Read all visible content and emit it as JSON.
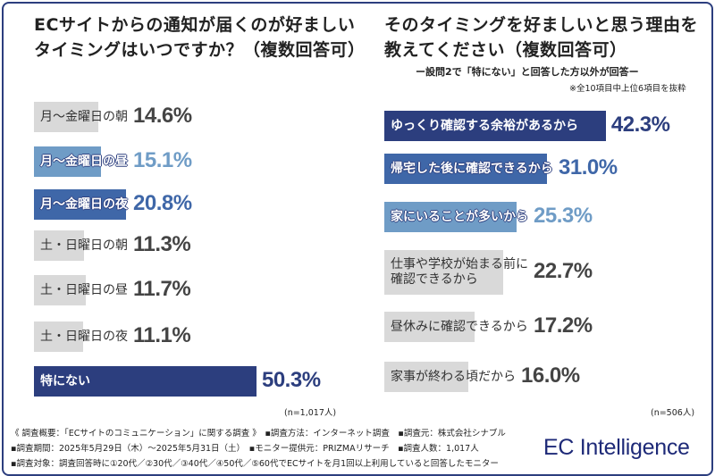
{
  "colors": {
    "navy": "#2c3e7e",
    "mid": "#3f67a8",
    "light": "#6f9cc6",
    "grey": "#d9d9d9",
    "value_grey": "#444444"
  },
  "chart_data": [
    {
      "type": "bar",
      "orientation": "horizontal",
      "title_line1": "ECサイトからの通知が届くのが好ましい",
      "title_line2": "タイミングはいつですか？（複数回答可）",
      "categories": [
        "月～金曜日の朝",
        "月～金曜日の昼",
        "月～金曜日の夜",
        "土・日曜日の朝",
        "土・日曜日の昼",
        "土・日曜日の夜",
        "特にない"
      ],
      "values": [
        14.6,
        15.1,
        20.8,
        11.3,
        11.7,
        11.1,
        50.3
      ],
      "value_labels": [
        "14.6%",
        "15.1%",
        "20.8%",
        "11.3%",
        "11.7%",
        "11.1%",
        "50.3%"
      ],
      "bar_colors": [
        "grey",
        "light",
        "mid",
        "grey",
        "grey",
        "grey",
        "navy"
      ],
      "sample": "(n=1,017人)"
    },
    {
      "type": "bar",
      "orientation": "horizontal",
      "title_line1": "そのタイミングを好ましいと思う理由を",
      "title_line2": "教えてください（複数回答可）",
      "subtitle": "ー設問2で「特にない」と回答した方以外が回答ー",
      "note": "※全10項目中上位6項目を抜粋",
      "categories": [
        "ゆっくり確認する余裕があるから",
        "帰宅した後に確認できるから",
        "家にいることが多いから",
        "仕事や学校が始まる前に\n確認できるから",
        "昼休みに確認できるから",
        "家事が終わる頃だから"
      ],
      "values": [
        42.3,
        31.0,
        25.3,
        22.7,
        17.2,
        16.0
      ],
      "value_labels": [
        "42.3%",
        "31.0%",
        "25.3%",
        "22.7%",
        "17.2%",
        "16.0%"
      ],
      "bar_colors": [
        "navy",
        "mid",
        "light",
        "grey",
        "grey",
        "grey"
      ],
      "sample": "(n=506人)"
    }
  ],
  "footer": {
    "line1": "《 調査概要：「ECサイトのコミュニケーション」に関する調査 》　▪調査方法：インターネット調査　▪調査元：株式会社シナブル",
    "line2": "▪調査期間：2025年5月29日（木）～2025年5月31日（土）　▪モニター提供元：PRIZMAリサーチ　▪調査人数：1,017人",
    "line3": "▪調査対象：調査回答時に①20代／②30代／③40代／④50代／⑤60代でECサイトを月1回以上利用していると回答したモニター",
    "logo": "EC Intelligence"
  }
}
